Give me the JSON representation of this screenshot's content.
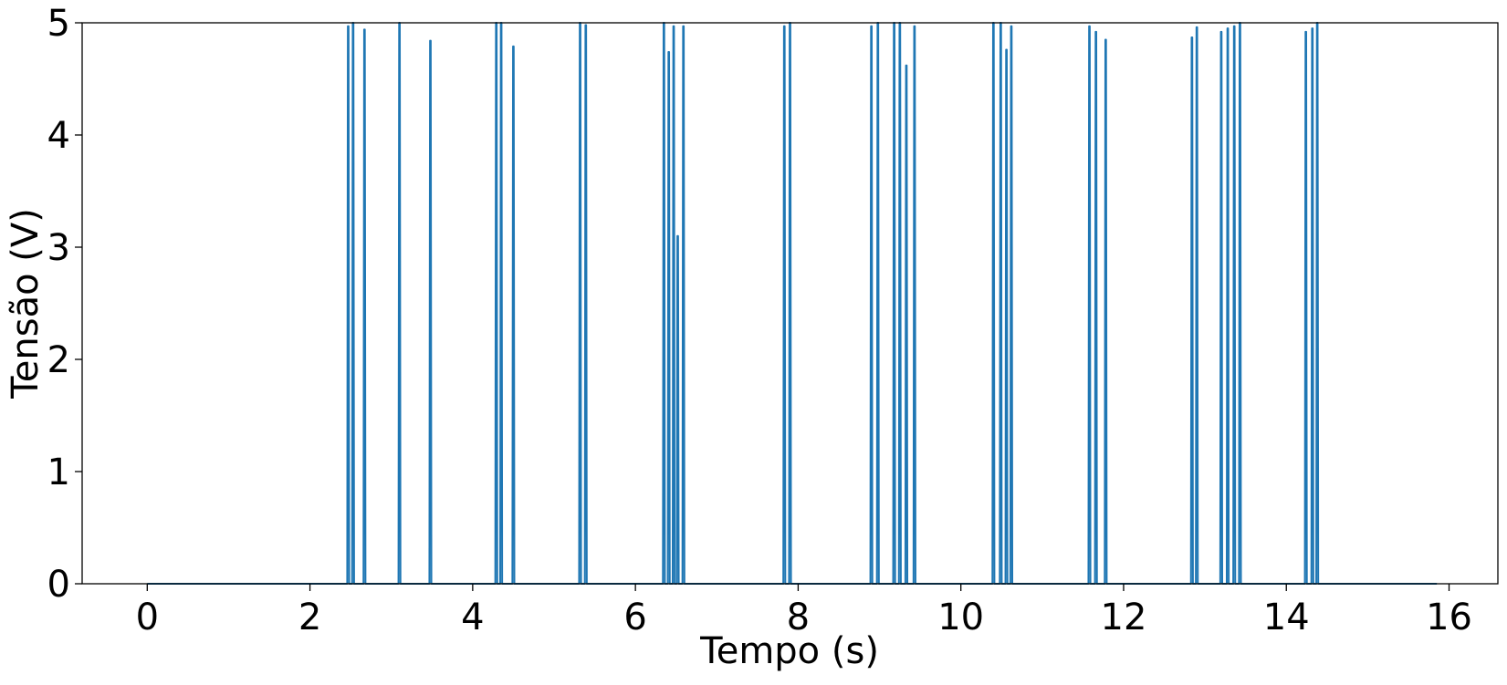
{
  "chart_data": {
    "type": "line",
    "title": "",
    "xlabel": "Tempo (s)",
    "ylabel": "Tensão (V)",
    "xlim": [
      -0.8,
      16.6
    ],
    "ylim": [
      0,
      5
    ],
    "x_ticks": [
      "0",
      "2",
      "4",
      "6",
      "8",
      "10",
      "12",
      "14",
      "16"
    ],
    "y_ticks": [
      "0",
      "1",
      "2",
      "3",
      "4",
      "5"
    ],
    "grid": false,
    "legend": "none",
    "line_color": "#1f77b4",
    "series": [
      {
        "pulses": [
          {
            "t": 2.47,
            "v": 4.97
          },
          {
            "t": 2.53,
            "v": 5.0
          },
          {
            "t": 2.67,
            "v": 4.94
          },
          {
            "t": 3.1,
            "v": 5.0
          },
          {
            "t": 3.48,
            "v": 4.84
          },
          {
            "t": 4.29,
            "v": 5.0
          },
          {
            "t": 4.35,
            "v": 5.0
          },
          {
            "t": 4.5,
            "v": 4.79
          },
          {
            "t": 5.32,
            "v": 5.0
          },
          {
            "t": 5.39,
            "v": 4.98
          },
          {
            "t": 6.35,
            "v": 5.0
          },
          {
            "t": 6.41,
            "v": 4.74
          },
          {
            "t": 6.47,
            "v": 4.97
          },
          {
            "t": 6.52,
            "v": 3.1
          },
          {
            "t": 6.59,
            "v": 4.97
          },
          {
            "t": 7.83,
            "v": 4.97
          },
          {
            "t": 7.9,
            "v": 5.0
          },
          {
            "t": 8.9,
            "v": 4.97
          },
          {
            "t": 8.98,
            "v": 5.0
          },
          {
            "t": 9.18,
            "v": 5.0
          },
          {
            "t": 9.25,
            "v": 5.0
          },
          {
            "t": 9.33,
            "v": 4.62
          },
          {
            "t": 9.43,
            "v": 4.97
          },
          {
            "t": 10.4,
            "v": 5.0
          },
          {
            "t": 10.49,
            "v": 5.0
          },
          {
            "t": 10.56,
            "v": 4.76
          },
          {
            "t": 10.62,
            "v": 4.97
          },
          {
            "t": 11.58,
            "v": 4.97
          },
          {
            "t": 11.66,
            "v": 4.92
          },
          {
            "t": 11.78,
            "v": 4.85
          },
          {
            "t": 12.84,
            "v": 4.87
          },
          {
            "t": 12.9,
            "v": 4.96
          },
          {
            "t": 13.2,
            "v": 4.92
          },
          {
            "t": 13.28,
            "v": 4.95
          },
          {
            "t": 13.36,
            "v": 4.97
          },
          {
            "t": 13.43,
            "v": 5.0
          },
          {
            "t": 14.24,
            "v": 4.92
          },
          {
            "t": 14.32,
            "v": 4.95
          },
          {
            "t": 14.38,
            "v": 5.0
          }
        ],
        "time_start": 0.0,
        "time_end": 15.85
      }
    ]
  }
}
